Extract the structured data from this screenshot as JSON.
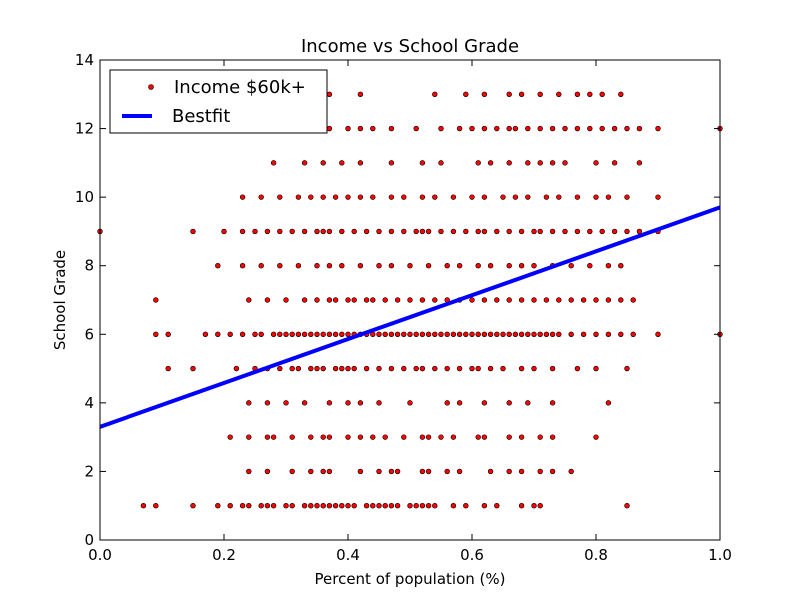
{
  "chart_data": {
    "type": "scatter",
    "title": "Income vs School Grade",
    "xlabel": "Percent of population (%)",
    "ylabel": "School Grade",
    "xlim": [
      0.0,
      1.0
    ],
    "ylim": [
      0,
      14
    ],
    "x_ticks": [
      "0.0",
      "0.2",
      "0.4",
      "0.6",
      "0.8",
      "1.0"
    ],
    "y_ticks": [
      "0",
      "2",
      "4",
      "6",
      "8",
      "10",
      "12",
      "14"
    ],
    "grid": false,
    "legend_position": "top-left",
    "colors": {
      "points": "#ff0000",
      "point_edge": "#000000",
      "line": "#0000ff"
    },
    "series": [
      {
        "name": "Income $60k+",
        "kind": "scatter",
        "points": [
          {
            "y": 1,
            "x": [
              0.07,
              0.09,
              0.15,
              0.19,
              0.21,
              0.23,
              0.24,
              0.26,
              0.27,
              0.28,
              0.3,
              0.31,
              0.33,
              0.34,
              0.35,
              0.36,
              0.37,
              0.38,
              0.39,
              0.4,
              0.41,
              0.43,
              0.44,
              0.45,
              0.46,
              0.47,
              0.48,
              0.5,
              0.51,
              0.52,
              0.53,
              0.54,
              0.57,
              0.59,
              0.62,
              0.64,
              0.68,
              0.7,
              0.71,
              0.85
            ]
          },
          {
            "y": 2,
            "x": [
              0.24,
              0.27,
              0.31,
              0.34,
              0.36,
              0.37,
              0.42,
              0.45,
              0.47,
              0.48,
              0.52,
              0.53,
              0.56,
              0.58,
              0.63,
              0.66,
              0.68,
              0.71,
              0.73,
              0.76
            ]
          },
          {
            "y": 3,
            "x": [
              0.21,
              0.24,
              0.27,
              0.28,
              0.31,
              0.34,
              0.36,
              0.37,
              0.4,
              0.42,
              0.44,
              0.46,
              0.49,
              0.52,
              0.53,
              0.55,
              0.57,
              0.61,
              0.62,
              0.66,
              0.68,
              0.71,
              0.73,
              0.8
            ]
          },
          {
            "y": 4,
            "x": [
              0.24,
              0.27,
              0.3,
              0.33,
              0.37,
              0.4,
              0.42,
              0.45,
              0.5,
              0.56,
              0.58,
              0.62,
              0.66,
              0.69,
              0.73,
              0.82
            ]
          },
          {
            "y": 5,
            "x": [
              0.11,
              0.15,
              0.22,
              0.25,
              0.27,
              0.29,
              0.31,
              0.32,
              0.34,
              0.35,
              0.36,
              0.38,
              0.39,
              0.4,
              0.41,
              0.43,
              0.45,
              0.47,
              0.49,
              0.51,
              0.52,
              0.54,
              0.56,
              0.58,
              0.6,
              0.61,
              0.63,
              0.65,
              0.68,
              0.7,
              0.73,
              0.77,
              0.8,
              0.85
            ]
          },
          {
            "y": 6,
            "x": [
              0.09,
              0.11,
              0.17,
              0.19,
              0.21,
              0.23,
              0.25,
              0.26,
              0.28,
              0.29,
              0.3,
              0.31,
              0.32,
              0.33,
              0.34,
              0.35,
              0.36,
              0.37,
              0.38,
              0.39,
              0.4,
              0.41,
              0.42,
              0.43,
              0.44,
              0.45,
              0.46,
              0.47,
              0.48,
              0.49,
              0.5,
              0.51,
              0.52,
              0.53,
              0.54,
              0.55,
              0.56,
              0.57,
              0.58,
              0.59,
              0.6,
              0.61,
              0.62,
              0.63,
              0.64,
              0.65,
              0.66,
              0.67,
              0.68,
              0.69,
              0.7,
              0.71,
              0.72,
              0.73,
              0.74,
              0.76,
              0.78,
              0.8,
              0.82,
              0.84,
              0.86,
              0.9,
              1.0
            ]
          },
          {
            "y": 7,
            "x": [
              0.09,
              0.24,
              0.27,
              0.3,
              0.33,
              0.35,
              0.37,
              0.38,
              0.4,
              0.41,
              0.43,
              0.44,
              0.46,
              0.48,
              0.5,
              0.52,
              0.54,
              0.56,
              0.58,
              0.6,
              0.62,
              0.64,
              0.66,
              0.68,
              0.7,
              0.72,
              0.74,
              0.76,
              0.78,
              0.8,
              0.82,
              0.84,
              0.86
            ]
          },
          {
            "y": 8,
            "x": [
              0.19,
              0.23,
              0.26,
              0.29,
              0.32,
              0.35,
              0.37,
              0.39,
              0.42,
              0.45,
              0.47,
              0.5,
              0.53,
              0.56,
              0.58,
              0.61,
              0.63,
              0.66,
              0.68,
              0.7,
              0.73,
              0.76,
              0.79,
              0.82,
              0.84
            ]
          },
          {
            "y": 9,
            "x": [
              0.0,
              0.15,
              0.2,
              0.23,
              0.25,
              0.27,
              0.29,
              0.31,
              0.33,
              0.35,
              0.36,
              0.37,
              0.39,
              0.41,
              0.43,
              0.45,
              0.47,
              0.49,
              0.51,
              0.52,
              0.53,
              0.55,
              0.57,
              0.59,
              0.61,
              0.62,
              0.64,
              0.66,
              0.68,
              0.7,
              0.71,
              0.73,
              0.75,
              0.77,
              0.79,
              0.81,
              0.83,
              0.85,
              0.87,
              0.9
            ]
          },
          {
            "y": 10,
            "x": [
              0.23,
              0.26,
              0.29,
              0.32,
              0.34,
              0.36,
              0.38,
              0.4,
              0.42,
              0.44,
              0.47,
              0.49,
              0.52,
              0.54,
              0.57,
              0.6,
              0.62,
              0.65,
              0.67,
              0.69,
              0.72,
              0.74,
              0.77,
              0.8,
              0.82,
              0.85,
              0.9
            ]
          },
          {
            "y": 11,
            "x": [
              0.28,
              0.33,
              0.36,
              0.39,
              0.42,
              0.47,
              0.52,
              0.55,
              0.61,
              0.63,
              0.66,
              0.69,
              0.71,
              0.73,
              0.75,
              0.8,
              0.83,
              0.87
            ]
          },
          {
            "y": 12,
            "x": [
              0.3,
              0.33,
              0.37,
              0.4,
              0.42,
              0.44,
              0.47,
              0.51,
              0.55,
              0.58,
              0.6,
              0.62,
              0.64,
              0.66,
              0.67,
              0.69,
              0.71,
              0.73,
              0.75,
              0.77,
              0.79,
              0.81,
              0.83,
              0.85,
              0.87,
              0.9,
              1.0
            ]
          },
          {
            "y": 13,
            "x": [
              0.37,
              0.42,
              0.54,
              0.59,
              0.62,
              0.66,
              0.68,
              0.71,
              0.74,
              0.77,
              0.79,
              0.81,
              0.84
            ]
          }
        ]
      },
      {
        "name": "Bestfit",
        "kind": "line",
        "x": [
          0.0,
          1.0
        ],
        "y": [
          3.3,
          9.7
        ]
      }
    ]
  }
}
